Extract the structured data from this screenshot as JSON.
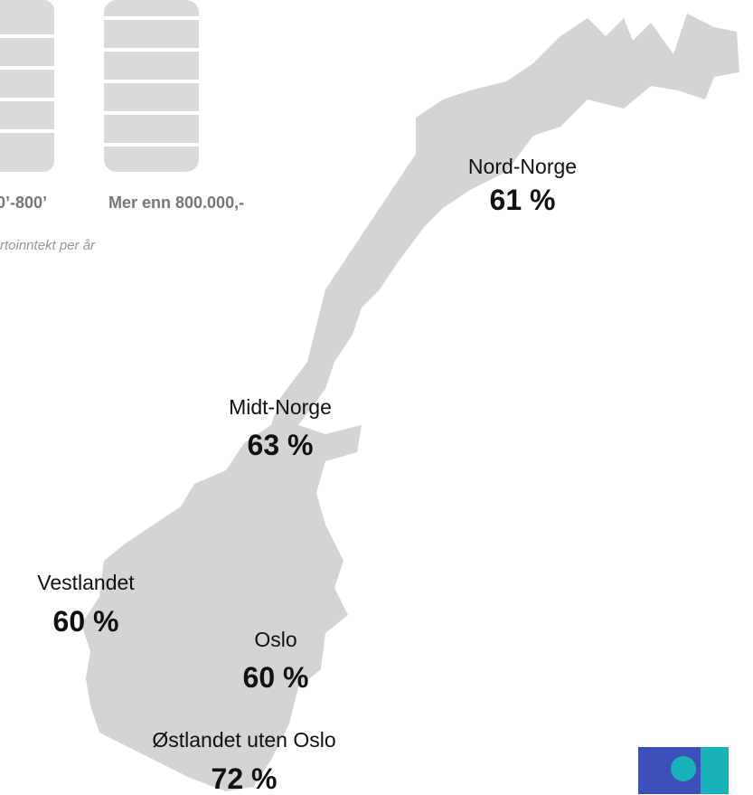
{
  "coins": {
    "labels": [
      "0’-800’",
      "Mer enn 800.000,-"
    ],
    "note": "rtoinntekt per år"
  },
  "regions": [
    {
      "name": "Nord-Norge",
      "value": "61 %"
    },
    {
      "name": "Midt-Norge",
      "value": "63 %"
    },
    {
      "name": "Vestlandet",
      "value": "60 %"
    },
    {
      "name": "Oslo",
      "value": "60 %"
    },
    {
      "name": "Østlandet uten Oslo",
      "value": "72 %"
    }
  ]
}
